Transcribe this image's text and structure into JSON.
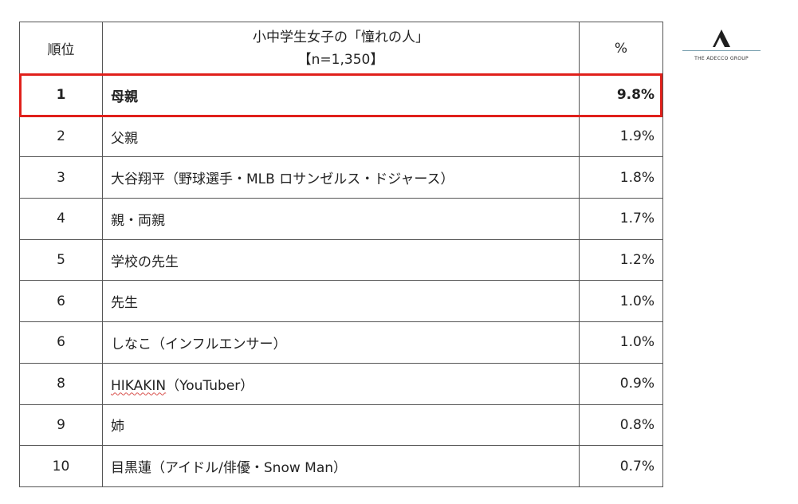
{
  "table": {
    "headers": {
      "rank": "順位",
      "title": "小中学生女子の「憧れの人」",
      "sample": "【n=1,350】",
      "percent": "%"
    },
    "rows": [
      {
        "rank": "1",
        "name": "母親",
        "pct": "9.8%"
      },
      {
        "rank": "2",
        "name": "父親",
        "pct": "1.9%"
      },
      {
        "rank": "3",
        "name": "大谷翔平（野球選手・MLB ロサンゼルス・ドジャース）",
        "pct": "1.8%"
      },
      {
        "rank": "4",
        "name": "親・両親",
        "pct": "1.7%"
      },
      {
        "rank": "5",
        "name": "学校の先生",
        "pct": "1.2%"
      },
      {
        "rank": "6",
        "name": "先生",
        "pct": "1.0%"
      },
      {
        "rank": "6",
        "name": "しなこ（インフルエンサー）",
        "pct": "1.0%"
      },
      {
        "rank": "8",
        "name_part1": "HIKAKIN",
        "name_part2": "（YouTuber）",
        "pct": "0.9%"
      },
      {
        "rank": "9",
        "name": "姉",
        "pct": "0.8%"
      },
      {
        "rank": "10",
        "name": "目黒蓮（アイドル/俳優・Snow Man）",
        "pct": "0.7%"
      }
    ]
  },
  "logo": {
    "text": "THE ADECCO GROUP",
    "icon": "adecco-a-logo-icon",
    "color": "#1f1f1f",
    "rule_color": "#7aa1b0"
  },
  "highlight_color": "#e0201b"
}
